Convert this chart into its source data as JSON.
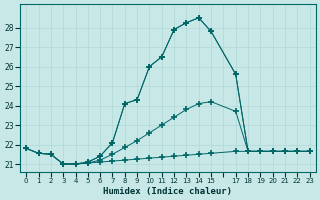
{
  "xlabel": "Humidex (Indice chaleur)",
  "bg_color": "#c8e8e8",
  "grid_color": "#b0d8d8",
  "line_color": "#006666",
  "xlim": [
    -0.5,
    23.5
  ],
  "ylim": [
    20.6,
    29.2
  ],
  "yticks": [
    21,
    22,
    23,
    24,
    25,
    26,
    27,
    28
  ],
  "xtick_positions": [
    0,
    1,
    2,
    3,
    4,
    5,
    6,
    7,
    8,
    9,
    10,
    11,
    12,
    13,
    14,
    15,
    16,
    17,
    18,
    19,
    20,
    21,
    22,
    23
  ],
  "xtick_labels": [
    "0",
    "1",
    "2",
    "3",
    "4",
    "5",
    "6",
    "7",
    "8",
    "9",
    "10",
    "11",
    "12",
    "13",
    "14",
    "15",
    "",
    "17",
    "18",
    "19",
    "20",
    "21",
    "22",
    "23"
  ],
  "series1_x": [
    0,
    1,
    2,
    3,
    4,
    5,
    6,
    7,
    8,
    9,
    10,
    11,
    12,
    13,
    14,
    15,
    17,
    18,
    19,
    20,
    21,
    22,
    23
  ],
  "series1_y": [
    21.8,
    21.55,
    21.5,
    21.0,
    21.0,
    21.05,
    21.1,
    21.15,
    21.2,
    21.25,
    21.3,
    21.35,
    21.4,
    21.45,
    21.5,
    21.55,
    21.65,
    21.65,
    21.65,
    21.65,
    21.65,
    21.65,
    21.65
  ],
  "series2_x": [
    0,
    1,
    2,
    3,
    4,
    5,
    6,
    7,
    8,
    9,
    10,
    11,
    12,
    13,
    14,
    15,
    17,
    18,
    19,
    20,
    21,
    22,
    23
  ],
  "series2_y": [
    21.8,
    21.55,
    21.5,
    21.0,
    21.0,
    21.05,
    21.2,
    21.5,
    21.85,
    22.2,
    22.6,
    23.0,
    23.4,
    23.8,
    24.1,
    24.2,
    23.7,
    21.65,
    21.65,
    21.65,
    21.65,
    21.65,
    21.65
  ],
  "series3_x": [
    0,
    1,
    2,
    3,
    4,
    5,
    6,
    7,
    8,
    9,
    10,
    11,
    12,
    13,
    14,
    15,
    17,
    18,
    19,
    20,
    21,
    22,
    23
  ],
  "series3_y": [
    21.8,
    21.55,
    21.5,
    21.0,
    21.0,
    21.1,
    21.4,
    22.1,
    24.1,
    24.3,
    26.0,
    26.5,
    27.9,
    28.25,
    28.5,
    27.8,
    25.6,
    21.65,
    21.65,
    21.65,
    21.65,
    21.65,
    21.65
  ],
  "series4_x": [
    3,
    4,
    5,
    6,
    7,
    8,
    9,
    10,
    11,
    12,
    13,
    14,
    15,
    17,
    18,
    19,
    20,
    21,
    22,
    23
  ],
  "series4_y": [
    21.0,
    21.0,
    21.1,
    21.4,
    22.1,
    24.1,
    24.3,
    26.0,
    26.5,
    27.9,
    28.25,
    28.5,
    27.8,
    25.6,
    21.65,
    21.65,
    21.65,
    21.65,
    21.65,
    21.65
  ]
}
